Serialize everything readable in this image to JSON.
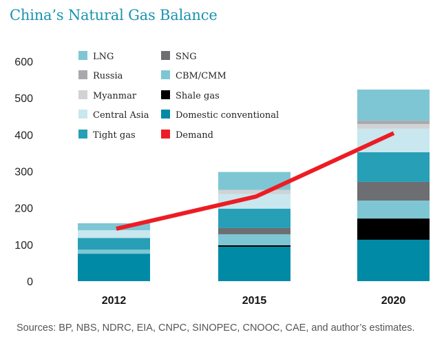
{
  "title": "China’s Natural Gas Balance",
  "source": "Sources: BP, NBS, NDRC, EIA, CNPC, SINOPEC, CNOOC, CAE, and author’s estimates.",
  "chart_data": {
    "type": "bar",
    "stacked": true,
    "title": "China’s Natural Gas Balance",
    "xlabel": "",
    "ylabel": "",
    "ylim": [
      0,
      600
    ],
    "yticks": [
      0,
      100,
      200,
      300,
      400,
      500,
      600
    ],
    "grid": false,
    "legend_position": "top-left",
    "categories": [
      "2012",
      "2015",
      "2020"
    ],
    "series": [
      {
        "name": "Domestic conventional",
        "color": "#008aa6",
        "values": [
          75,
          94,
          113
        ]
      },
      {
        "name": "Shale gas",
        "color": "#000000",
        "values": [
          0,
          4,
          58
        ]
      },
      {
        "name": "CBM/CMM",
        "color": "#7fc6d4",
        "values": [
          11,
          30,
          49
        ]
      },
      {
        "name": "SNG",
        "color": "#6d6e71",
        "values": [
          0,
          17,
          51
        ]
      },
      {
        "name": "Tight gas",
        "color": "#279fb6",
        "values": [
          32,
          53,
          81
        ]
      },
      {
        "name": "Central Asia",
        "color": "#c8e7ee",
        "values": [
          21,
          40,
          64
        ]
      },
      {
        "name": "Myanmar",
        "color": "#d1d2d4",
        "values": [
          0,
          11,
          13
        ]
      },
      {
        "name": "Russia",
        "color": "#a7a9ac",
        "values": [
          0,
          0,
          9
        ]
      },
      {
        "name": "LNG",
        "color": "#7fc6d4",
        "values": [
          19,
          49,
          85
        ]
      }
    ],
    "line_series": {
      "name": "Demand",
      "color": "#ed1c24",
      "values": [
        143,
        231,
        404
      ]
    },
    "legend": {
      "column1": [
        {
          "name": "LNG",
          "color": "#7fc6d4"
        },
        {
          "name": "Russia",
          "color": "#a7a9ac"
        },
        {
          "name": "Myanmar",
          "color": "#d1d2d4"
        },
        {
          "name": "Central Asia",
          "color": "#c8e7ee"
        },
        {
          "name": "Tight gas",
          "color": "#279fb6"
        }
      ],
      "column2": [
        {
          "name": "SNG",
          "color": "#6d6e71"
        },
        {
          "name": "CBM/CMM",
          "color": "#7fc6d4"
        },
        {
          "name": "Shale gas",
          "color": "#000000"
        },
        {
          "name": "Domestic conventional",
          "color": "#008aa6"
        },
        {
          "name": "Demand",
          "color": "#ed1c24"
        }
      ]
    }
  }
}
